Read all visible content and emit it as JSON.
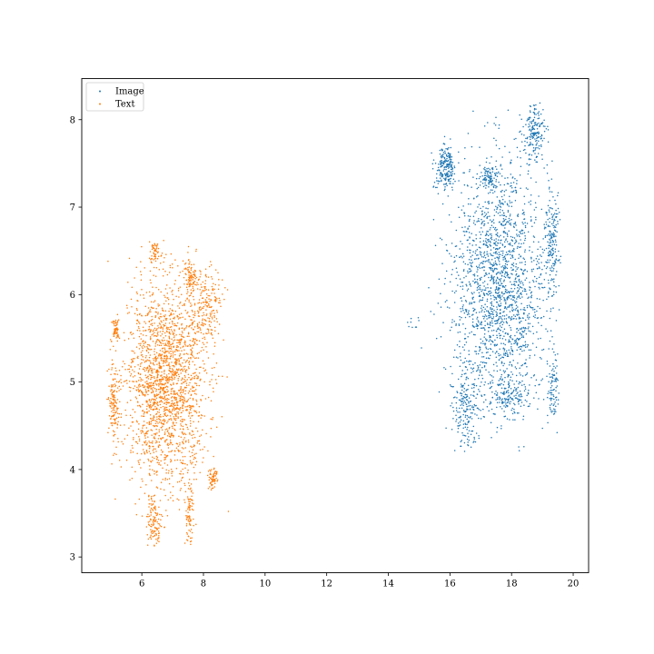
{
  "chart_data": {
    "type": "scatter",
    "title": "",
    "xlabel": "",
    "ylabel": "",
    "xlim": [
      4.05,
      20.5
    ],
    "ylim": [
      2.82,
      8.47
    ],
    "grid": false,
    "legend_placement": "top-left",
    "x_ticks": [
      6,
      8,
      10,
      12,
      14,
      16,
      18,
      20
    ],
    "x_tick_labels": [
      "6",
      "8",
      "10",
      "12",
      "14",
      "16",
      "18",
      "20"
    ],
    "y_ticks": [
      3,
      4,
      5,
      6,
      7,
      8
    ],
    "y_tick_labels": [
      "3",
      "4",
      "5",
      "6",
      "7",
      "8"
    ],
    "series": [
      {
        "name": "Image",
        "color": "#1f77b4",
        "n_points_approx": 3000,
        "x_range": [
          14.6,
          19.6
        ],
        "y_range": [
          4.2,
          8.2
        ],
        "clusters": [
          {
            "x": 17.6,
            "y": 6.1,
            "spread": [
              1.05,
              0.95
            ],
            "share": 0.62
          },
          {
            "x": 15.85,
            "y": 7.45,
            "spread": [
              0.22,
              0.17
            ],
            "share": 0.07
          },
          {
            "x": 18.75,
            "y": 7.85,
            "spread": [
              0.25,
              0.22
            ],
            "share": 0.06
          },
          {
            "x": 16.5,
            "y": 4.7,
            "spread": [
              0.25,
              0.3
            ],
            "share": 0.06
          },
          {
            "x": 18.0,
            "y": 4.85,
            "spread": [
              0.45,
              0.15
            ],
            "share": 0.05
          },
          {
            "x": 19.3,
            "y": 6.6,
            "spread": [
              0.15,
              0.45
            ],
            "share": 0.06
          },
          {
            "x": 17.3,
            "y": 7.35,
            "spread": [
              0.2,
              0.08
            ],
            "share": 0.03
          },
          {
            "x": 19.35,
            "y": 4.95,
            "spread": [
              0.12,
              0.3
            ],
            "share": 0.03
          },
          {
            "x": 14.8,
            "y": 5.65,
            "spread": [
              0.12,
              0.05
            ],
            "share": 0.003
          }
        ]
      },
      {
        "name": "Text",
        "color": "#ff7f0e",
        "n_points_approx": 2900,
        "x_range": [
          4.8,
          8.9
        ],
        "y_range": [
          3.1,
          6.65
        ],
        "clusters": [
          {
            "x": 6.8,
            "y": 5.0,
            "spread": [
              0.85,
              0.75
            ],
            "share": 0.68
          },
          {
            "x": 8.1,
            "y": 5.85,
            "spread": [
              0.35,
              0.3
            ],
            "share": 0.07
          },
          {
            "x": 6.4,
            "y": 3.4,
            "spread": [
              0.15,
              0.2
            ],
            "share": 0.04
          },
          {
            "x": 7.55,
            "y": 3.5,
            "spread": [
              0.1,
              0.25
            ],
            "share": 0.03
          },
          {
            "x": 5.1,
            "y": 4.75,
            "spread": [
              0.12,
              0.35
            ],
            "share": 0.05
          },
          {
            "x": 8.3,
            "y": 3.9,
            "spread": [
              0.1,
              0.08
            ],
            "share": 0.02
          },
          {
            "x": 6.4,
            "y": 6.45,
            "spread": [
              0.12,
              0.12
            ],
            "share": 0.02
          },
          {
            "x": 7.6,
            "y": 6.2,
            "spread": [
              0.15,
              0.12
            ],
            "share": 0.03
          },
          {
            "x": 5.15,
            "y": 5.6,
            "spread": [
              0.08,
              0.08
            ],
            "share": 0.02
          }
        ]
      }
    ],
    "legend": [
      "Image",
      "Text"
    ]
  }
}
